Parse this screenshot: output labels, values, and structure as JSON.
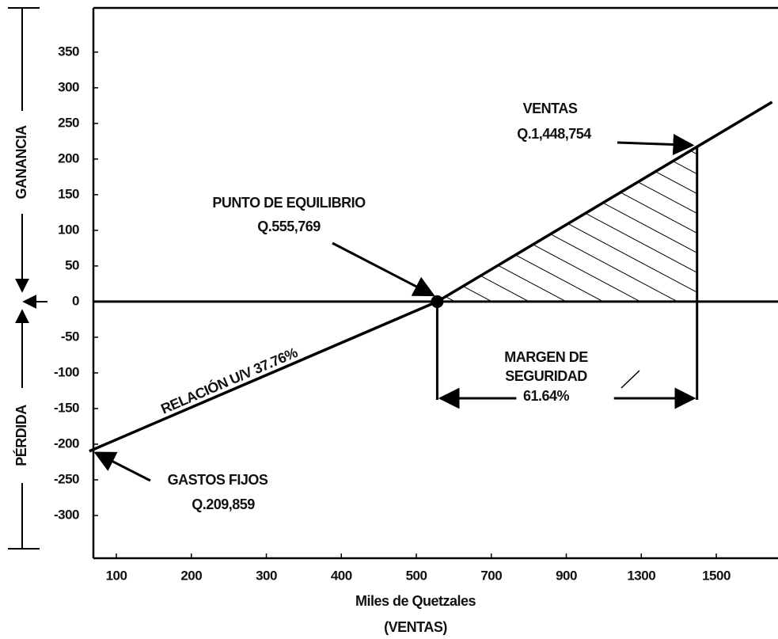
{
  "chart_data": {
    "type": "line",
    "x_label": [
      "Miles de Quetzales",
      "(VENTAS)"
    ],
    "y_labels": {
      "profit": "GANANCIA",
      "loss": "PÉRDIDA"
    },
    "x": [
      64,
      555.769,
      1649
    ],
    "series": [
      {
        "color": "#000000",
        "values": [
          -209.859,
          0,
          280
        ]
      }
    ],
    "xticks": [
      100,
      200,
      300,
      400,
      500,
      700,
      900,
      1300,
      1500
    ],
    "ylim": [
      -360,
      412
    ],
    "yticks": [
      -300,
      -250,
      -200,
      -150,
      -100,
      -50,
      0,
      50,
      100,
      150,
      200,
      250,
      300,
      350
    ],
    "annotations": {
      "sales": {
        "label": "VENTAS",
        "value_label": "Q.1,448,754",
        "value": 1448.754
      },
      "break_even": {
        "label": "PUNTO DE EQUILIBRIO",
        "value_label": "Q.555,769"
      },
      "fixed_costs": {
        "label": "GASTOS FIJOS",
        "value_label": "Q.209,859"
      },
      "contribution_ratio": {
        "label": "RELACIÓN U/V 37.76%"
      },
      "safety_margin": {
        "label": [
          "MARGEN DE",
          "SEGURIDAD"
        ],
        "value_label": "61.64%",
        "value": 61.64
      }
    }
  }
}
